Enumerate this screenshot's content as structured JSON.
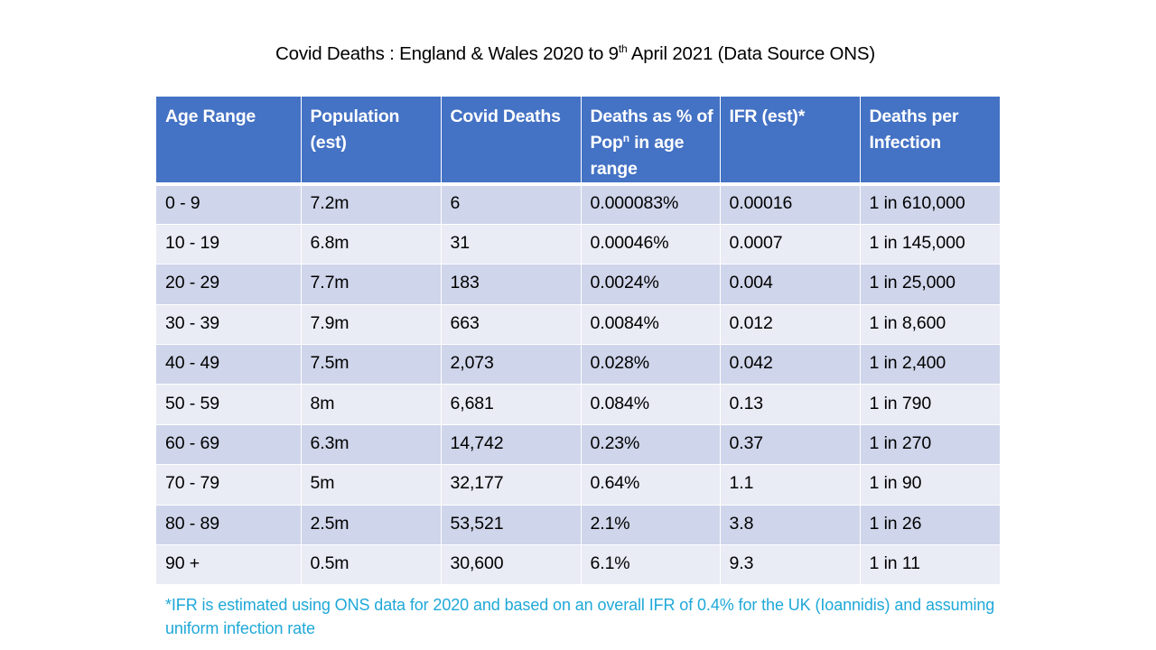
{
  "title": {
    "prefix": "Covid Deaths : England & Wales 2020 to 9",
    "superscript": "th",
    "suffix": " April 2021 (Data Source ONS)"
  },
  "table": {
    "headers": [
      {
        "text": "Age Range"
      },
      {
        "text": "Population (est)"
      },
      {
        "text": "Covid Deaths"
      },
      {
        "pre": "Deaths as % of Pop",
        "sup": "n",
        "post": " in age range"
      },
      {
        "text": "IFR (est)*"
      },
      {
        "text": "Deaths per Infection"
      }
    ],
    "rows": [
      [
        "0 - 9",
        "7.2m",
        "6",
        "0.000083%",
        "0.00016",
        "1 in 610,000"
      ],
      [
        "10 - 19",
        "6.8m",
        "31",
        "0.00046%",
        "0.0007",
        "1 in 145,000"
      ],
      [
        "20 - 29",
        "7.7m",
        "183",
        "0.0024%",
        "0.004",
        "1 in 25,000"
      ],
      [
        "30 - 39",
        "7.9m",
        "663",
        "0.0084%",
        "0.012",
        "1 in 8,600"
      ],
      [
        "40 - 49",
        "7.5m",
        "2,073",
        "0.028%",
        "0.042",
        "1 in 2,400"
      ],
      [
        "50 - 59",
        "8m",
        "6,681",
        "0.084%",
        "0.13",
        "1 in 790"
      ],
      [
        "60 - 69",
        "6.3m",
        "14,742",
        "0.23%",
        "0.37",
        "1 in 270"
      ],
      [
        "70 - 79",
        "5m",
        "32,177",
        "0.64%",
        "1.1",
        "1 in 90"
      ],
      [
        "80 - 89",
        "2.5m",
        "53,521",
        "2.1%",
        "3.8",
        "1 in 26"
      ],
      [
        "90 +",
        "0.5m",
        "30,600",
        "6.1%",
        "9.3",
        "1 in 11"
      ]
    ]
  },
  "footnote": "*IFR is estimated using ONS data for 2020 and based on an overall IFR of 0.4% for the UK (Ioannidis) and assuming uniform infection rate",
  "colors": {
    "header_bg": "#4472c4",
    "row_dark": "#cfd5ea",
    "row_light": "#e9ebf5",
    "footnote_text": "#1fa8d8"
  }
}
